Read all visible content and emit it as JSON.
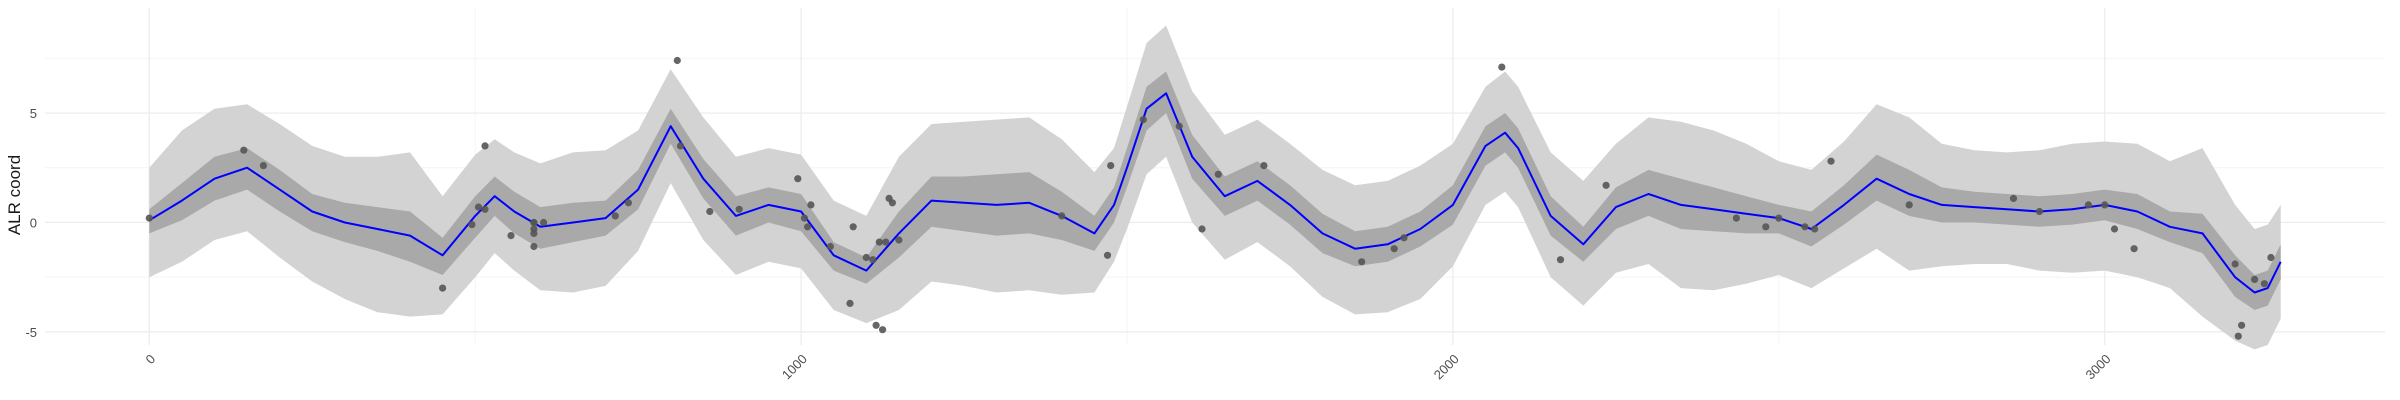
{
  "chart_data": {
    "type": "line",
    "title": "",
    "xlabel": "",
    "ylabel": "ALR coord",
    "xlim": [
      -160,
      3430
    ],
    "ylim": [
      -5.6,
      9.8
    ],
    "x_ticks": [
      0,
      1000,
      2000,
      3000
    ],
    "x_tick_labels": [
      "0",
      "1000",
      "2000",
      "3000"
    ],
    "x_minor_ticks": [
      500,
      1500,
      2500
    ],
    "y_ticks": [
      -5,
      0,
      5
    ],
    "y_tick_labels": [
      "-5",
      "0",
      "5"
    ],
    "y_minor_ticks": [
      -2.5,
      2.5,
      7.5
    ],
    "grid": true,
    "colors": {
      "mean_line": "#0000ff",
      "inner_band": "#a9a9a9",
      "outer_band": "#d3d3d3",
      "points": "#555555",
      "grid": "#ebebeb"
    },
    "series": [
      {
        "role": "posterior-mean",
        "x": [
          0,
          50,
          100,
          150,
          200,
          250,
          300,
          350,
          400,
          450,
          500,
          530,
          560,
          600,
          650,
          700,
          750,
          800,
          850,
          900,
          950,
          1000,
          1050,
          1100,
          1150,
          1200,
          1250,
          1300,
          1350,
          1400,
          1450,
          1480,
          1500,
          1530,
          1560,
          1600,
          1650,
          1700,
          1750,
          1800,
          1850,
          1900,
          1950,
          2000,
          2050,
          2080,
          2100,
          2150,
          2200,
          2250,
          2300,
          2350,
          2400,
          2450,
          2500,
          2550,
          2600,
          2650,
          2700,
          2750,
          2800,
          2850,
          2900,
          2950,
          3000,
          3050,
          3100,
          3150,
          3200,
          3230,
          3250,
          3270
        ],
        "y": [
          0.1,
          1.0,
          2.0,
          2.5,
          1.5,
          0.5,
          0.0,
          -0.3,
          -0.6,
          -1.5,
          0.3,
          1.2,
          0.5,
          -0.2,
          0.0,
          0.2,
          1.5,
          4.4,
          2.0,
          0.3,
          0.8,
          0.5,
          -1.5,
          -2.2,
          -0.5,
          1.0,
          0.9,
          0.8,
          0.9,
          0.3,
          -0.5,
          0.8,
          2.5,
          5.2,
          5.9,
          3.0,
          1.2,
          1.9,
          0.8,
          -0.5,
          -1.2,
          -1.0,
          -0.3,
          0.8,
          3.5,
          4.1,
          3.4,
          0.3,
          -1.0,
          0.7,
          1.3,
          0.8,
          0.6,
          0.4,
          0.2,
          -0.3,
          0.8,
          2.0,
          1.3,
          0.8,
          0.7,
          0.6,
          0.5,
          0.6,
          0.8,
          0.5,
          -0.2,
          -0.5,
          -2.5,
          -3.2,
          -3.0,
          -1.8
        ]
      },
      {
        "role": "inner-interval-upper",
        "x": [
          0,
          50,
          100,
          150,
          200,
          250,
          300,
          350,
          400,
          450,
          500,
          530,
          560,
          600,
          650,
          700,
          750,
          800,
          850,
          900,
          950,
          1000,
          1050,
          1100,
          1150,
          1200,
          1250,
          1300,
          1350,
          1400,
          1450,
          1480,
          1500,
          1530,
          1560,
          1600,
          1650,
          1700,
          1750,
          1800,
          1850,
          1900,
          1950,
          2000,
          2050,
          2080,
          2100,
          2150,
          2200,
          2250,
          2300,
          2350,
          2400,
          2450,
          2500,
          2550,
          2600,
          2650,
          2700,
          2750,
          2800,
          2850,
          2900,
          2950,
          3000,
          3050,
          3100,
          3150,
          3200,
          3230,
          3250,
          3270
        ],
        "y": [
          0.6,
          1.8,
          3.0,
          3.4,
          2.4,
          1.3,
          0.9,
          0.7,
          0.5,
          -0.7,
          1.2,
          2.1,
          1.4,
          0.7,
          0.9,
          1.0,
          2.4,
          5.2,
          2.9,
          1.2,
          1.6,
          1.3,
          -0.9,
          -1.6,
          0.5,
          2.1,
          2.1,
          2.2,
          2.3,
          1.4,
          0.3,
          1.6,
          3.4,
          6.2,
          6.9,
          4.0,
          2.1,
          2.8,
          1.7,
          0.4,
          -0.4,
          -0.2,
          0.5,
          1.7,
          4.4,
          5.0,
          4.3,
          1.2,
          -0.2,
          1.6,
          2.4,
          2.0,
          1.6,
          1.2,
          0.8,
          0.5,
          1.7,
          3.1,
          2.4,
          1.6,
          1.4,
          1.3,
          1.2,
          1.3,
          1.5,
          1.3,
          0.5,
          0.4,
          -1.5,
          -2.4,
          -2.2,
          -1.0
        ]
      },
      {
        "role": "inner-interval-lower",
        "x": [
          0,
          50,
          100,
          150,
          200,
          250,
          300,
          350,
          400,
          450,
          500,
          530,
          560,
          600,
          650,
          700,
          750,
          800,
          850,
          900,
          950,
          1000,
          1050,
          1100,
          1150,
          1200,
          1250,
          1300,
          1350,
          1400,
          1450,
          1480,
          1500,
          1530,
          1560,
          1600,
          1650,
          1700,
          1750,
          1800,
          1850,
          1900,
          1950,
          2000,
          2050,
          2080,
          2100,
          2150,
          2200,
          2250,
          2300,
          2350,
          2400,
          2450,
          2500,
          2550,
          2600,
          2650,
          2700,
          2750,
          2800,
          2850,
          2900,
          2950,
          3000,
          3050,
          3100,
          3150,
          3200,
          3230,
          3250,
          3270
        ],
        "y": [
          -0.5,
          0.1,
          1.0,
          1.5,
          0.5,
          -0.4,
          -0.9,
          -1.3,
          -1.8,
          -2.4,
          -0.7,
          0.3,
          -0.5,
          -1.2,
          -0.9,
          -0.6,
          0.6,
          3.6,
          1.1,
          -0.6,
          0.0,
          -0.4,
          -2.2,
          -2.8,
          -1.6,
          -0.2,
          -0.4,
          -0.6,
          -0.5,
          -0.8,
          -1.3,
          0.0,
          1.6,
          4.2,
          5.0,
          2.0,
          0.3,
          1.0,
          -0.1,
          -1.4,
          -2.0,
          -1.8,
          -1.1,
          -0.1,
          2.6,
          3.2,
          2.5,
          -0.6,
          -1.8,
          -0.3,
          0.3,
          -0.3,
          -0.4,
          -0.5,
          -0.5,
          -1.1,
          -0.1,
          1.0,
          0.3,
          0.0,
          0.0,
          -0.1,
          -0.2,
          -0.1,
          0.1,
          -0.3,
          -0.9,
          -1.4,
          -3.4,
          -4.0,
          -3.8,
          -2.6
        ]
      },
      {
        "role": "outer-interval-upper",
        "x": [
          0,
          50,
          100,
          150,
          200,
          250,
          300,
          350,
          400,
          450,
          500,
          530,
          560,
          600,
          650,
          700,
          750,
          800,
          850,
          900,
          950,
          1000,
          1050,
          1100,
          1150,
          1200,
          1250,
          1300,
          1350,
          1400,
          1450,
          1480,
          1500,
          1530,
          1560,
          1600,
          1650,
          1700,
          1750,
          1800,
          1850,
          1900,
          1950,
          2000,
          2050,
          2080,
          2100,
          2150,
          2200,
          2250,
          2300,
          2350,
          2400,
          2450,
          2500,
          2550,
          2600,
          2650,
          2700,
          2750,
          2800,
          2850,
          2900,
          2950,
          3000,
          3050,
          3100,
          3150,
          3200,
          3230,
          3250,
          3270
        ],
        "y": [
          2.5,
          4.2,
          5.2,
          5.4,
          4.5,
          3.5,
          3.0,
          3.0,
          3.2,
          1.2,
          3.1,
          3.8,
          3.2,
          2.7,
          3.2,
          3.3,
          4.2,
          7.0,
          4.8,
          3.0,
          3.4,
          3.1,
          1.0,
          0.3,
          3.0,
          4.5,
          4.6,
          4.7,
          4.8,
          3.8,
          2.3,
          3.4,
          5.3,
          8.2,
          9.0,
          6.0,
          4.0,
          4.7,
          3.6,
          2.4,
          1.7,
          1.9,
          2.6,
          3.6,
          6.2,
          6.9,
          6.2,
          3.2,
          1.9,
          3.6,
          4.8,
          4.6,
          4.2,
          3.6,
          2.8,
          2.4,
          3.7,
          5.4,
          4.8,
          3.6,
          3.3,
          3.2,
          3.3,
          3.6,
          3.7,
          3.6,
          2.8,
          3.4,
          0.8,
          -0.3,
          -0.1,
          0.8
        ]
      },
      {
        "role": "outer-interval-lower",
        "x": [
          0,
          50,
          100,
          150,
          200,
          250,
          300,
          350,
          400,
          450,
          500,
          530,
          560,
          600,
          650,
          700,
          750,
          800,
          850,
          900,
          950,
          1000,
          1050,
          1100,
          1150,
          1200,
          1250,
          1300,
          1350,
          1400,
          1450,
          1480,
          1500,
          1530,
          1560,
          1600,
          1650,
          1700,
          1750,
          1800,
          1850,
          1900,
          1950,
          2000,
          2050,
          2080,
          2100,
          2150,
          2200,
          2250,
          2300,
          2350,
          2400,
          2450,
          2500,
          2550,
          2600,
          2650,
          2700,
          2750,
          2800,
          2850,
          2900,
          2950,
          3000,
          3050,
          3100,
          3150,
          3200,
          3230,
          3250,
          3270
        ],
        "y": [
          -2.5,
          -1.8,
          -0.8,
          -0.4,
          -1.6,
          -2.7,
          -3.5,
          -4.1,
          -4.3,
          -4.2,
          -2.5,
          -1.4,
          -2.2,
          -3.1,
          -3.2,
          -2.9,
          -1.3,
          1.8,
          -0.8,
          -2.4,
          -1.8,
          -2.1,
          -4.0,
          -4.6,
          -4.0,
          -2.7,
          -2.9,
          -3.2,
          -3.1,
          -3.3,
          -3.2,
          -1.8,
          -0.3,
          2.2,
          3.0,
          0.0,
          -1.7,
          -0.9,
          -2.0,
          -3.4,
          -4.2,
          -4.1,
          -3.5,
          -2.0,
          0.8,
          1.4,
          0.7,
          -2.5,
          -3.8,
          -2.3,
          -1.9,
          -3.0,
          -3.1,
          -2.8,
          -2.4,
          -3.0,
          -2.1,
          -1.2,
          -2.2,
          -2.0,
          -1.9,
          -1.9,
          -2.2,
          -2.3,
          -2.2,
          -2.5,
          -3.0,
          -4.3,
          -5.4,
          -5.8,
          -5.6,
          -4.4
        ]
      },
      {
        "role": "observations",
        "x": [
          0,
          145,
          175,
          450,
          495,
          505,
          515,
          515,
          555,
          590,
          590,
          590,
          590,
          590,
          605,
          715,
          735,
          810,
          815,
          860,
          905,
          995,
          1005,
          1010,
          1015,
          1045,
          1075,
          1080,
          1100,
          1110,
          1115,
          1120,
          1125,
          1130,
          1135,
          1140,
          1150,
          1400,
          1470,
          1475,
          1525,
          1580,
          1615,
          1640,
          1710,
          1860,
          1910,
          1925,
          2075,
          2165,
          2235,
          2435,
          2480,
          2500,
          2540,
          2555,
          2580,
          2700,
          2860,
          2900,
          2975,
          3000,
          3015,
          3045,
          3200,
          3205,
          3210,
          3230,
          3245,
          3255
        ],
        "y": [
          0.2,
          3.3,
          2.6,
          -3.0,
          -0.1,
          0.7,
          0.6,
          3.5,
          -0.6,
          -1.1,
          -0.5,
          -0.3,
          0.0,
          0.0,
          0.0,
          0.3,
          0.9,
          7.4,
          3.5,
          0.5,
          0.6,
          2.0,
          0.2,
          -0.2,
          0.8,
          -1.1,
          -3.7,
          -0.2,
          -1.6,
          -1.7,
          -4.7,
          -0.9,
          -4.9,
          -0.9,
          1.1,
          0.9,
          -0.8,
          0.3,
          -1.5,
          2.6,
          4.7,
          4.4,
          -0.3,
          2.2,
          2.6,
          -1.8,
          -1.2,
          -0.7,
          7.1,
          -1.7,
          1.7,
          0.2,
          -0.2,
          0.2,
          -0.2,
          -0.3,
          2.8,
          0.8,
          1.1,
          0.5,
          0.8,
          0.8,
          -0.3,
          -1.2,
          -1.9,
          -5.2,
          -4.7,
          -2.6,
          -2.8,
          -1.6
        ]
      }
    ]
  }
}
